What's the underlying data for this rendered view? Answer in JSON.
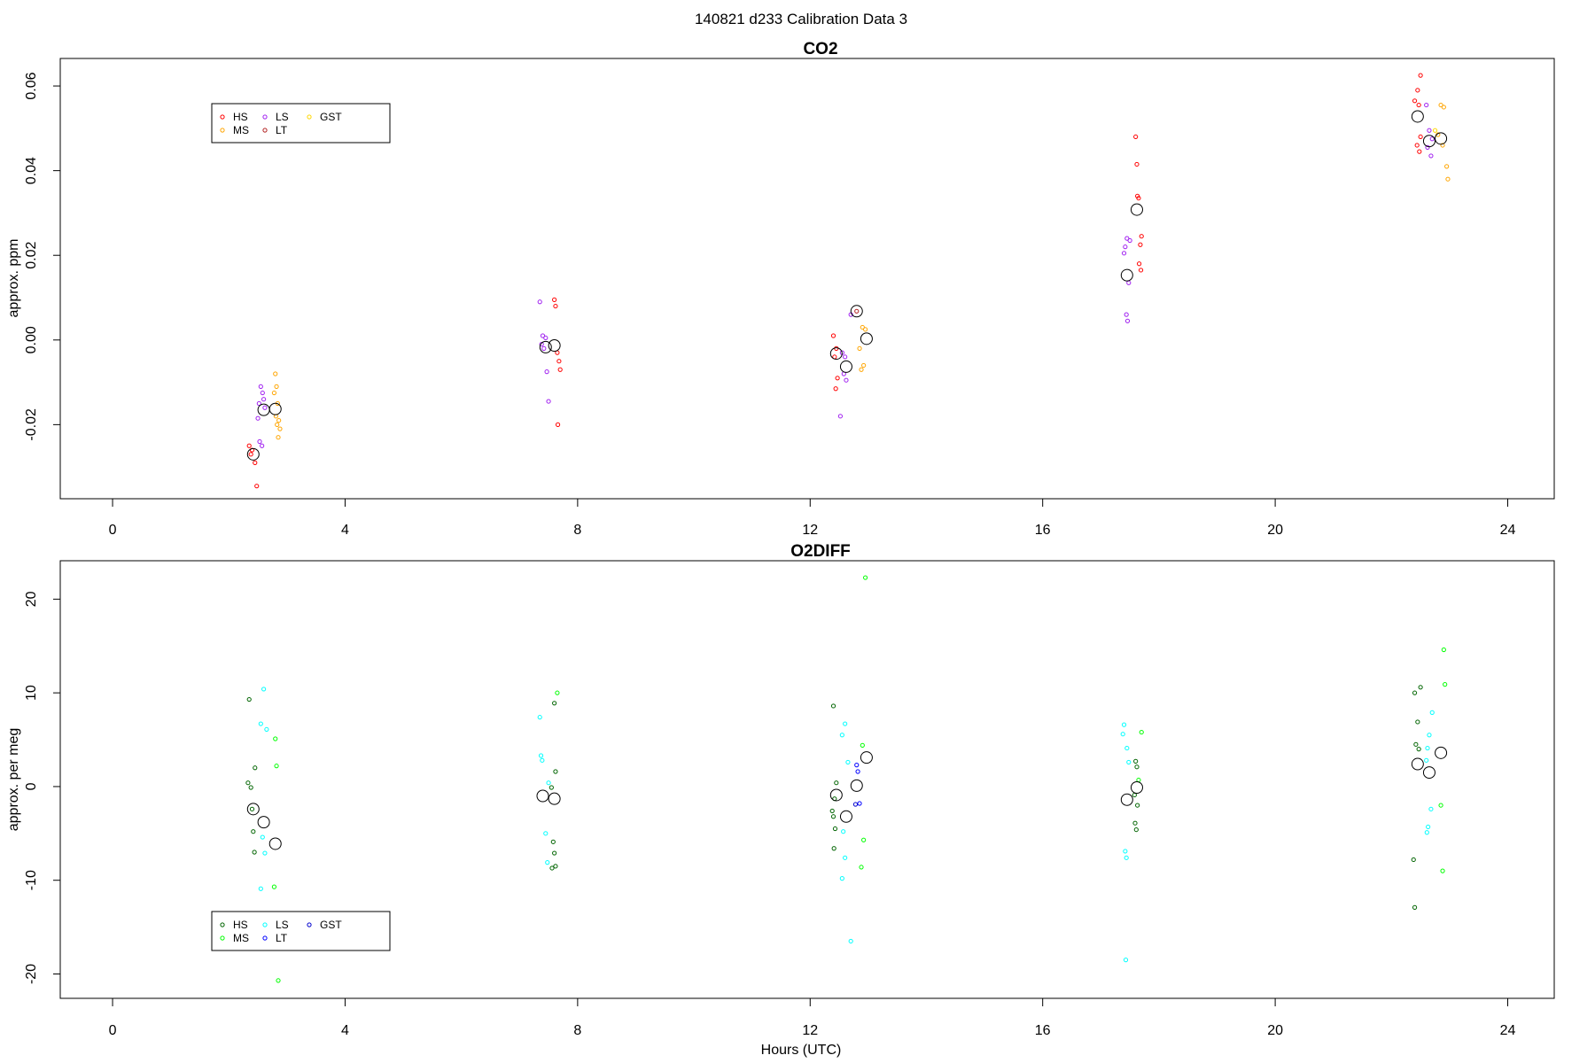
{
  "page": {
    "title": "140821   d233   Calibration Data 3"
  },
  "chart_data": [
    {
      "type": "scatter",
      "title": "CO2",
      "xlabel": "",
      "ylabel": "approx. ppm",
      "xlim": [
        -0.9,
        24.8
      ],
      "ylim": [
        -0.0375,
        0.0665
      ],
      "xticks": [
        0,
        4,
        8,
        12,
        16,
        20,
        24
      ],
      "yticks": [
        -0.02,
        0.0,
        0.02,
        0.04,
        0.06
      ],
      "ytick_labels": [
        "-0.02",
        "0.00",
        "0.02",
        "0.04",
        "0.06"
      ],
      "grid": false,
      "legend": {
        "position": "top-left",
        "entries": [
          {
            "name": "HS",
            "color": "#ff0000"
          },
          {
            "name": "MS",
            "color": "#ffa500"
          },
          {
            "name": "LS",
            "color": "#a020f0"
          },
          {
            "name": "LT",
            "color": "#b22222"
          },
          {
            "name": "GST",
            "color": "#ffd700"
          }
        ]
      },
      "series": [
        {
          "name": "HS",
          "color": "#ff0000",
          "points": [
            [
              2.35,
              -0.025
            ],
            [
              2.4,
              -0.026
            ],
            [
              2.45,
              -0.029
            ],
            [
              2.38,
              -0.027
            ],
            [
              2.48,
              -0.0345
            ],
            [
              7.6,
              0.0095
            ],
            [
              7.62,
              0.008
            ],
            [
              7.65,
              -0.003
            ],
            [
              7.68,
              -0.005
            ],
            [
              7.7,
              -0.007
            ],
            [
              7.66,
              -0.02
            ],
            [
              12.4,
              0.001
            ],
            [
              12.45,
              -0.002
            ],
            [
              12.42,
              -0.004
            ],
            [
              12.47,
              -0.009
            ],
            [
              12.44,
              -0.0115
            ],
            [
              17.6,
              0.048
            ],
            [
              17.62,
              0.0415
            ],
            [
              17.63,
              0.034
            ],
            [
              17.65,
              0.0335
            ],
            [
              17.7,
              0.0245
            ],
            [
              17.68,
              0.0225
            ],
            [
              17.66,
              0.018
            ],
            [
              17.69,
              0.0165
            ],
            [
              22.5,
              0.0625
            ],
            [
              22.45,
              0.059
            ],
            [
              22.4,
              0.0565
            ],
            [
              22.47,
              0.0555
            ],
            [
              22.5,
              0.048
            ],
            [
              22.44,
              0.046
            ],
            [
              22.48,
              0.0445
            ]
          ]
        },
        {
          "name": "MS",
          "color": "#ffa500",
          "points": [
            [
              2.8,
              -0.008
            ],
            [
              2.82,
              -0.011
            ],
            [
              2.78,
              -0.0125
            ],
            [
              2.84,
              -0.015
            ],
            [
              2.81,
              -0.018
            ],
            [
              2.86,
              -0.019
            ],
            [
              2.83,
              -0.02
            ],
            [
              2.88,
              -0.021
            ],
            [
              2.85,
              -0.023
            ],
            [
              12.9,
              0.003
            ],
            [
              12.95,
              0.0025
            ],
            [
              12.85,
              -0.002
            ],
            [
              12.92,
              -0.006
            ],
            [
              12.88,
              -0.007
            ],
            [
              22.85,
              0.0555
            ],
            [
              22.9,
              0.055
            ],
            [
              22.95,
              0.041
            ],
            [
              22.97,
              0.038
            ],
            [
              22.8,
              0.0485
            ],
            [
              22.88,
              0.046
            ]
          ]
        },
        {
          "name": "LS",
          "color": "#a020f0",
          "points": [
            [
              2.55,
              -0.011
            ],
            [
              2.58,
              -0.0125
            ],
            [
              2.6,
              -0.014
            ],
            [
              2.52,
              -0.015
            ],
            [
              2.62,
              -0.016
            ],
            [
              2.5,
              -0.0185
            ],
            [
              2.53,
              -0.024
            ],
            [
              2.57,
              -0.025
            ],
            [
              7.35,
              0.009
            ],
            [
              7.4,
              0.001
            ],
            [
              7.45,
              0.0005
            ],
            [
              7.38,
              -0.001
            ],
            [
              7.42,
              -0.002
            ],
            [
              7.47,
              -0.0075
            ],
            [
              7.5,
              -0.0145
            ],
            [
              12.55,
              -0.003
            ],
            [
              12.6,
              -0.004
            ],
            [
              12.58,
              -0.008
            ],
            [
              12.62,
              -0.0095
            ],
            [
              12.52,
              -0.018
            ],
            [
              12.7,
              0.006
            ],
            [
              17.45,
              0.024
            ],
            [
              17.5,
              0.0235
            ],
            [
              17.42,
              0.022
            ],
            [
              17.4,
              0.0205
            ],
            [
              17.48,
              0.0135
            ],
            [
              17.44,
              0.006
            ],
            [
              17.46,
              0.0045
            ],
            [
              22.6,
              0.0555
            ],
            [
              22.65,
              0.0495
            ],
            [
              22.7,
              0.0475
            ],
            [
              22.62,
              0.0455
            ],
            [
              22.68,
              0.0435
            ]
          ]
        },
        {
          "name": "LT",
          "color": "#b22222",
          "points": [
            [
              12.8,
              0.0068
            ]
          ]
        },
        {
          "name": "GST",
          "color": "#ffd700",
          "points": [
            [
              22.75,
              0.0495
            ]
          ]
        }
      ],
      "means": [
        [
          2.42,
          -0.027
        ],
        [
          2.6,
          -0.0165
        ],
        [
          2.8,
          -0.0163
        ],
        [
          7.45,
          -0.0017
        ],
        [
          7.6,
          -0.0013
        ],
        [
          12.45,
          -0.0032
        ],
        [
          12.62,
          -0.0063
        ],
        [
          12.8,
          0.0068
        ],
        [
          12.97,
          0.0003
        ],
        [
          17.45,
          0.0153
        ],
        [
          17.62,
          0.0308
        ],
        [
          22.45,
          0.0528
        ],
        [
          22.65,
          0.047
        ],
        [
          22.85,
          0.0476
        ]
      ]
    },
    {
      "type": "scatter",
      "title": "O2DIFF",
      "xlabel": "Hours (UTC)",
      "ylabel": "approx. per meg",
      "xlim": [
        -0.9,
        24.8
      ],
      "ylim": [
        -22.6,
        24.1
      ],
      "xticks": [
        0,
        4,
        8,
        12,
        16,
        20,
        24
      ],
      "yticks": [
        -20,
        -10,
        0,
        10,
        20
      ],
      "ytick_labels": [
        "-20",
        "-10",
        "0",
        "10",
        "20"
      ],
      "grid": false,
      "legend": {
        "position": "bottom-left",
        "entries": [
          {
            "name": "HS",
            "color": "#006400"
          },
          {
            "name": "MS",
            "color": "#00ff00"
          },
          {
            "name": "LS",
            "color": "#00ffff"
          },
          {
            "name": "LT",
            "color": "#0000ff"
          },
          {
            "name": "GST",
            "color": "#0000cd"
          }
        ]
      },
      "series": [
        {
          "name": "HS",
          "color": "#006400",
          "points": [
            [
              2.35,
              9.3
            ],
            [
              2.45,
              2.0
            ],
            [
              2.33,
              0.4
            ],
            [
              2.38,
              -0.1
            ],
            [
              2.4,
              -2.4
            ],
            [
              2.42,
              -4.8
            ],
            [
              2.44,
              -7.0
            ],
            [
              7.6,
              8.9
            ],
            [
              7.62,
              1.6
            ],
            [
              7.55,
              -0.1
            ],
            [
              7.58,
              -5.9
            ],
            [
              7.6,
              -7.1
            ],
            [
              7.56,
              -8.7
            ],
            [
              7.62,
              -8.5
            ],
            [
              12.4,
              8.6
            ],
            [
              12.45,
              0.4
            ],
            [
              12.42,
              -1.3
            ],
            [
              12.38,
              -2.6
            ],
            [
              12.4,
              -3.2
            ],
            [
              12.43,
              -4.5
            ],
            [
              12.41,
              -6.6
            ],
            [
              17.6,
              2.7
            ],
            [
              17.62,
              2.1
            ],
            [
              17.58,
              -0.9
            ],
            [
              17.63,
              -2.0
            ],
            [
              17.59,
              -3.9
            ],
            [
              17.61,
              -4.6
            ],
            [
              22.4,
              10.0
            ],
            [
              22.5,
              10.6
            ],
            [
              22.45,
              6.9
            ],
            [
              22.42,
              4.5
            ],
            [
              22.47,
              4.0
            ],
            [
              22.38,
              -7.8
            ],
            [
              22.4,
              -12.9
            ]
          ]
        },
        {
          "name": "MS",
          "color": "#00ff00",
          "points": [
            [
              2.8,
              5.1
            ],
            [
              2.82,
              2.2
            ],
            [
              2.78,
              -10.7
            ],
            [
              2.85,
              -20.7
            ],
            [
              7.65,
              10.0
            ],
            [
              12.95,
              22.3
            ],
            [
              12.9,
              4.4
            ],
            [
              12.92,
              -5.7
            ],
            [
              12.88,
              -8.6
            ],
            [
              17.7,
              5.8
            ],
            [
              17.65,
              0.7
            ],
            [
              22.9,
              14.6
            ],
            [
              22.92,
              10.9
            ],
            [
              22.85,
              -2.0
            ],
            [
              22.88,
              -9.0
            ]
          ]
        },
        {
          "name": "LS",
          "color": "#00ffff",
          "points": [
            [
              2.6,
              10.4
            ],
            [
              2.55,
              6.7
            ],
            [
              2.65,
              6.1
            ],
            [
              2.58,
              -5.4
            ],
            [
              2.62,
              -7.1
            ],
            [
              2.55,
              -10.9
            ],
            [
              7.35,
              7.4
            ],
            [
              7.37,
              3.3
            ],
            [
              7.39,
              2.8
            ],
            [
              7.5,
              0.4
            ],
            [
              7.45,
              -5.0
            ],
            [
              7.48,
              -8.1
            ],
            [
              12.6,
              6.7
            ],
            [
              12.55,
              5.5
            ],
            [
              12.65,
              2.6
            ],
            [
              12.57,
              -4.8
            ],
            [
              12.6,
              -7.6
            ],
            [
              12.55,
              -9.8
            ],
            [
              12.7,
              -16.5
            ],
            [
              17.4,
              6.6
            ],
            [
              17.38,
              5.6
            ],
            [
              17.45,
              4.1
            ],
            [
              17.48,
              2.6
            ],
            [
              17.42,
              -6.9
            ],
            [
              17.44,
              -7.6
            ],
            [
              17.43,
              -18.5
            ],
            [
              22.7,
              7.9
            ],
            [
              22.65,
              5.5
            ],
            [
              22.62,
              4.1
            ],
            [
              22.6,
              2.8
            ],
            [
              22.68,
              -2.4
            ],
            [
              22.63,
              -4.3
            ],
            [
              22.61,
              -4.9
            ]
          ]
        },
        {
          "name": "LT",
          "color": "#0000ff",
          "points": [
            [
              12.8,
              2.3
            ],
            [
              12.82,
              1.6
            ],
            [
              12.85,
              -1.8
            ]
          ]
        },
        {
          "name": "GST",
          "color": "#0000cd",
          "points": [
            [
              12.78,
              -1.9
            ]
          ]
        }
      ],
      "means": [
        [
          2.42,
          -2.4
        ],
        [
          2.6,
          -3.8
        ],
        [
          2.8,
          -6.1
        ],
        [
          7.4,
          -1.0
        ],
        [
          7.6,
          -1.3
        ],
        [
          12.45,
          -0.9
        ],
        [
          12.62,
          -3.2
        ],
        [
          12.8,
          0.1
        ],
        [
          12.97,
          3.1
        ],
        [
          17.45,
          -1.4
        ],
        [
          17.62,
          -0.1
        ],
        [
          22.45,
          2.4
        ],
        [
          22.65,
          1.5
        ],
        [
          22.85,
          3.6
        ]
      ]
    }
  ]
}
